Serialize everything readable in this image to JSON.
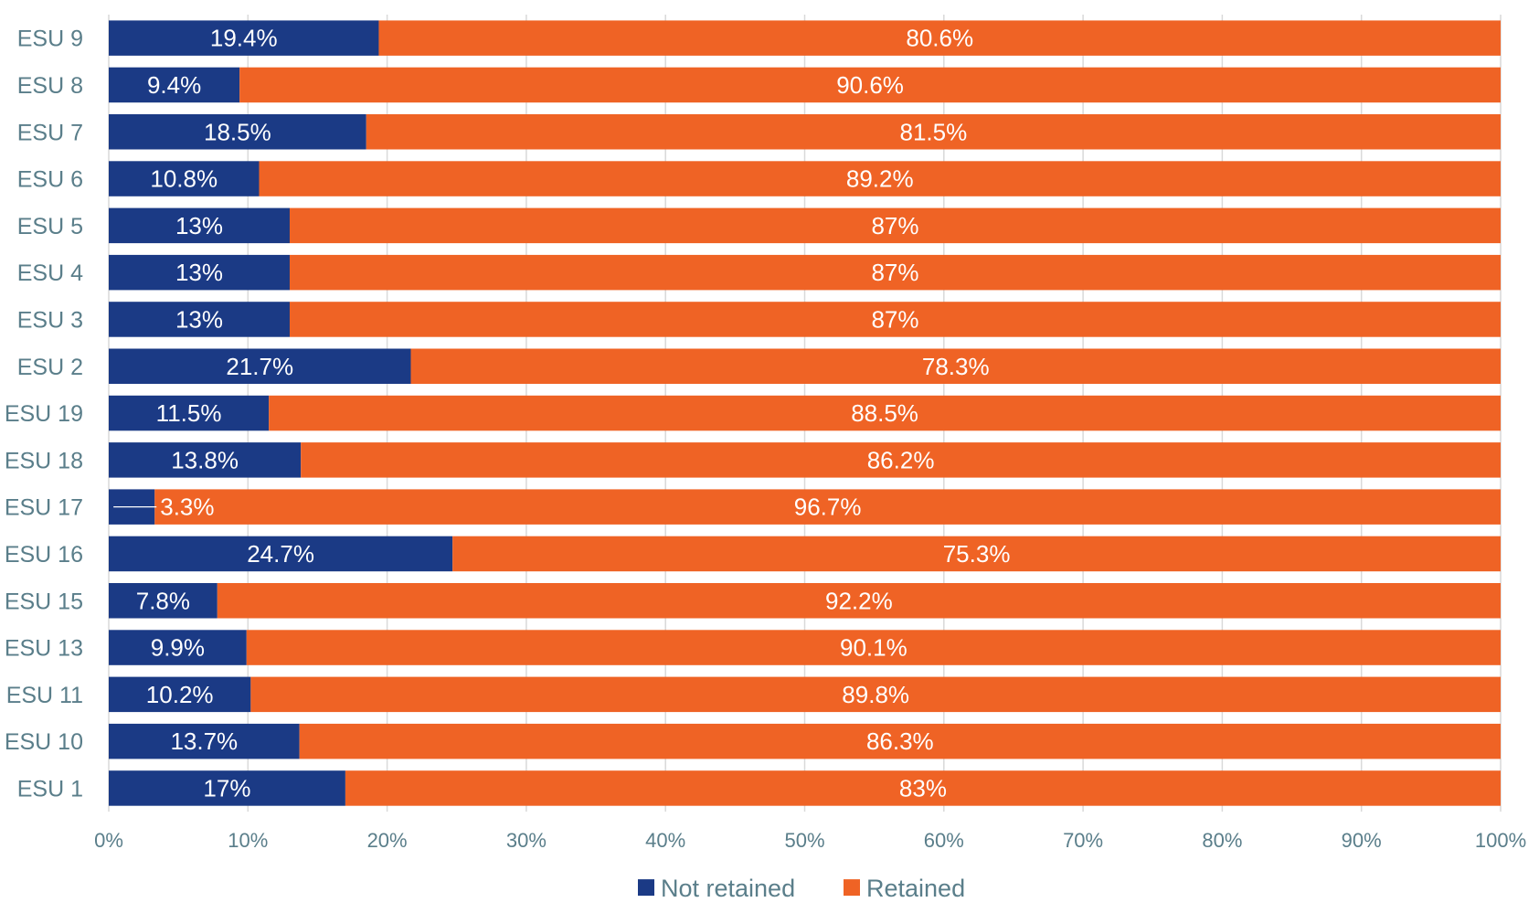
{
  "chart_data": {
    "type": "bar",
    "orientation": "horizontal",
    "stacked": "percent",
    "categories": [
      "ESU 9",
      "ESU 8",
      "ESU 7",
      "ESU 6",
      "ESU 5",
      "ESU 4",
      "ESU 3",
      "ESU 2",
      "ESU 19",
      "ESU 18",
      "ESU 17",
      "ESU 16",
      "ESU 15",
      "ESU 13",
      "ESU 11",
      "ESU 10",
      "ESU 1"
    ],
    "series": [
      {
        "name": "Not retained",
        "color": "#1b3a85",
        "values": [
          19.4,
          9.4,
          18.5,
          10.8,
          13,
          13,
          13,
          21.7,
          11.5,
          13.8,
          3.3,
          24.7,
          7.8,
          9.9,
          10.2,
          13.7,
          17
        ],
        "labels": [
          "19.4%",
          "9.4%",
          "18.5%",
          "10.8%",
          "13%",
          "13%",
          "13%",
          "21.7%",
          "11.5%",
          "13.8%",
          "3.3%",
          "24.7%",
          "7.8%",
          "9.9%",
          "10.2%",
          "13.7%",
          "17%"
        ]
      },
      {
        "name": "Retained",
        "color": "#ef6325",
        "values": [
          80.6,
          90.6,
          81.5,
          89.2,
          87,
          87,
          87,
          78.3,
          88.5,
          86.2,
          96.7,
          75.3,
          92.2,
          90.1,
          89.8,
          86.3,
          83
        ],
        "labels": [
          "80.6%",
          "90.6%",
          "81.5%",
          "89.2%",
          "87%",
          "87%",
          "87%",
          "78.3%",
          "88.5%",
          "86.2%",
          "96.7%",
          "75.3%",
          "92.2%",
          "90.1%",
          "89.8%",
          "86.3%",
          "83%"
        ]
      }
    ],
    "x_ticks": [
      "0%",
      "10%",
      "20%",
      "30%",
      "40%",
      "50%",
      "60%",
      "70%",
      "80%",
      "90%",
      "100%"
    ],
    "xlim": [
      0,
      100
    ],
    "grid": true,
    "legend": {
      "position": "bottom-center",
      "items": [
        "Not retained",
        "Retained"
      ]
    }
  }
}
